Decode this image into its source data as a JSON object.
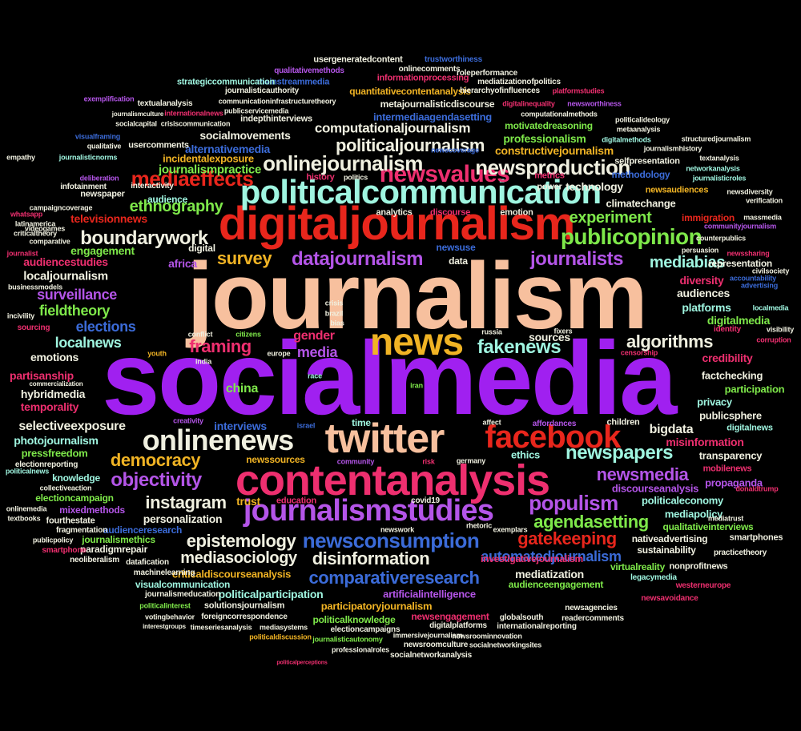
{
  "words": [
    {
      "text": "journalism",
      "color": "#f7c09e"
    },
    {
      "text": "socialmedia",
      "color": "#a020f0"
    },
    {
      "text": "digitaljournalism",
      "color": "#e8261c"
    },
    {
      "text": "politicalcommunication",
      "color": "#9ff5e0"
    },
    {
      "text": "contentanalysis",
      "color": "#ee2f6f"
    },
    {
      "text": "twitter",
      "color": "#f7c09e"
    },
    {
      "text": "news",
      "color": "#f0b324"
    },
    {
      "text": "facebook",
      "color": "#e8261c"
    },
    {
      "text": "onlinenews",
      "color": "#f0f0e0"
    },
    {
      "text": "journalismstudies",
      "color": "#b455e8"
    },
    {
      "text": "newsvalues",
      "color": "#ee2f6f"
    },
    {
      "text": "publicopinion",
      "color": "#7ee84a"
    },
    {
      "text": "mediaeffects",
      "color": "#e8261c"
    },
    {
      "text": "onlinejournalism",
      "color": "#f0f0e0"
    },
    {
      "text": "newsproduction",
      "color": "#f0f0e0"
    },
    {
      "text": "journalists",
      "color": "#b455e8"
    },
    {
      "text": "datajournalism",
      "color": "#b455e8"
    },
    {
      "text": "boundarywork",
      "color": "#f0f0e0"
    },
    {
      "text": "survey",
      "color": "#f0b324"
    },
    {
      "text": "framing",
      "color": "#ee2f6f"
    },
    {
      "text": "fakenews",
      "color": "#9ff5e0"
    },
    {
      "text": "algorithms",
      "color": "#f0f0e0"
    },
    {
      "text": "newsconsumption",
      "color": "#3b6bd8"
    },
    {
      "text": "newspapers",
      "color": "#9ff5e0"
    },
    {
      "text": "populism",
      "color": "#b455e8"
    },
    {
      "text": "objectivity",
      "color": "#b455e8"
    },
    {
      "text": "democracy",
      "color": "#f0b324"
    },
    {
      "text": "instagram",
      "color": "#f0f0e0"
    },
    {
      "text": "epistemology",
      "color": "#f0f0e0"
    },
    {
      "text": "disinformation",
      "color": "#f0f0e0"
    },
    {
      "text": "comparativeresearch",
      "color": "#3b6bd8"
    },
    {
      "text": "agendasetting",
      "color": "#7ee84a"
    },
    {
      "text": "gatekeeping",
      "color": "#e8261c"
    },
    {
      "text": "newsmedia",
      "color": "#b455e8"
    },
    {
      "text": "automatedjournalism",
      "color": "#3b6bd8"
    },
    {
      "text": "mediasociology",
      "color": "#f0f0e0"
    },
    {
      "text": "politicaljournalism",
      "color": "#f0f0e0"
    },
    {
      "text": "computationaljournalism",
      "color": "#f0f0e0"
    },
    {
      "text": "experiment",
      "color": "#7ee84a"
    },
    {
      "text": "ethnography",
      "color": "#7ee84a"
    },
    {
      "text": "mediabias",
      "color": "#9ff5e0"
    },
    {
      "text": "elections",
      "color": "#3b6bd8"
    },
    {
      "text": "surveillance",
      "color": "#b455e8"
    },
    {
      "text": "fieldtheory",
      "color": "#7ee84a"
    },
    {
      "text": "localnews",
      "color": "#9ff5e0"
    },
    {
      "text": "media",
      "color": "#b455e8"
    },
    {
      "text": "gender",
      "color": "#ee2f6f"
    },
    {
      "text": "bigdata",
      "color": "#f0f0e0"
    },
    {
      "text": "selectiveexposure",
      "color": "#f0f0e0"
    },
    {
      "text": "china",
      "color": "#7ee84a"
    },
    {
      "text": "hybridmedia",
      "color": "#f0f0e0"
    },
    {
      "text": "temporality",
      "color": "#ee2f6f"
    },
    {
      "text": "partisanship",
      "color": "#ee2f6f"
    },
    {
      "text": "emotions",
      "color": "#f0f0e0"
    },
    {
      "text": "localjournalism",
      "color": "#f0f0e0"
    },
    {
      "text": "audiencestudies",
      "color": "#ee2f6f"
    },
    {
      "text": "engagement",
      "color": "#7ee84a"
    },
    {
      "text": "televisionnews",
      "color": "#e8261c"
    },
    {
      "text": "journalismpractice",
      "color": "#7ee84a"
    },
    {
      "text": "alternativemedia",
      "color": "#3b6bd8"
    },
    {
      "text": "incidentalexposure",
      "color": "#f0b324"
    },
    {
      "text": "socialmovements",
      "color": "#f0f0e0"
    },
    {
      "text": "constructivejournalism",
      "color": "#f0b324"
    },
    {
      "text": "professionalism",
      "color": "#7ee84a"
    },
    {
      "text": "technology",
      "color": "#f0f0e0"
    },
    {
      "text": "climatechange",
      "color": "#f0f0e0"
    },
    {
      "text": "digitalmedia",
      "color": "#7ee84a"
    },
    {
      "text": "platforms",
      "color": "#9ff5e0"
    },
    {
      "text": "diversity",
      "color": "#ee2f6f"
    },
    {
      "text": "audiences",
      "color": "#f0f0e0"
    },
    {
      "text": "credibility",
      "color": "#ee2f6f"
    },
    {
      "text": "factchecking",
      "color": "#f0f0e0"
    },
    {
      "text": "participation",
      "color": "#7ee84a"
    },
    {
      "text": "privacy",
      "color": "#9ff5e0"
    },
    {
      "text": "publicsphere",
      "color": "#f0f0e0"
    },
    {
      "text": "misinformation",
      "color": "#ee2f6f"
    },
    {
      "text": "transparency",
      "color": "#f0f0e0"
    },
    {
      "text": "propaganda",
      "color": "#b455e8"
    },
    {
      "text": "mediapolicy",
      "color": "#9ff5e0"
    },
    {
      "text": "politicaleconomy",
      "color": "#9ff5e0"
    },
    {
      "text": "discourseanalysis",
      "color": "#b455e8"
    },
    {
      "text": "interviews",
      "color": "#3b6bd8"
    },
    {
      "text": "photojournalism",
      "color": "#9ff5e0"
    },
    {
      "text": "pressfreedom",
      "color": "#7ee84a"
    },
    {
      "text": "newssources",
      "color": "#f0b324"
    },
    {
      "text": "ethics",
      "color": "#9ff5e0"
    },
    {
      "text": "knowledge",
      "color": "#9ff5e0"
    },
    {
      "text": "electioncampaign",
      "color": "#7ee84a"
    },
    {
      "text": "personalization",
      "color": "#f0f0e0"
    },
    {
      "text": "trust",
      "color": "#f0b324"
    },
    {
      "text": "mixedmethods",
      "color": "#b455e8"
    },
    {
      "text": "fourthestate",
      "color": "#f0f0e0"
    },
    {
      "text": "audienceresearch",
      "color": "#3b6bd8"
    },
    {
      "text": "journalismethics",
      "color": "#7ee84a"
    },
    {
      "text": "paradigmrepair",
      "color": "#f0f0e0"
    },
    {
      "text": "criticaldiscourseanalysis",
      "color": "#f0b324"
    },
    {
      "text": "visualcommunication",
      "color": "#9ff5e0"
    },
    {
      "text": "politicalparticipation",
      "color": "#9ff5e0"
    },
    {
      "text": "participatoryjournalism",
      "color": "#f0b324"
    },
    {
      "text": "artificialintelligence",
      "color": "#b455e8"
    },
    {
      "text": "mediatization",
      "color": "#f0f0e0"
    },
    {
      "text": "investigativejournalism",
      "color": "#ee2f6f"
    },
    {
      "text": "audienceengagement",
      "color": "#7ee84a"
    },
    {
      "text": "politicalknowledge",
      "color": "#7ee84a"
    },
    {
      "text": "newsengagement",
      "color": "#ee2f6f"
    },
    {
      "text": "qualitativeinterviews",
      "color": "#7ee84a"
    },
    {
      "text": "nativeadvertising",
      "color": "#f0f0e0"
    },
    {
      "text": "sustainability",
      "color": "#f0f0e0"
    },
    {
      "text": "virtualreality",
      "color": "#7ee84a"
    },
    {
      "text": "intermediaagendasetting",
      "color": "#3b6bd8"
    },
    {
      "text": "metajournalisticdiscourse",
      "color": "#f0f0e0"
    },
    {
      "text": "quantitativecontentanalysis",
      "color": "#f0b324"
    },
    {
      "text": "informationprocessing",
      "color": "#ee2f6f"
    },
    {
      "text": "mainstreammedia",
      "color": "#3b6bd8"
    },
    {
      "text": "usergeneratedcontent",
      "color": "#f0f0e0"
    },
    {
      "text": "strategiccommunication",
      "color": "#9ff5e0"
    },
    {
      "text": "representation",
      "color": "#f0f0e0"
    },
    {
      "text": "immigration",
      "color": "#e8261c"
    },
    {
      "text": "newsaudiences",
      "color": "#f0b324"
    },
    {
      "text": "methodology",
      "color": "#3b6bd8"
    },
    {
      "text": "motivatedreasoning",
      "color": "#7ee84a"
    },
    {
      "text": "indepthinterviews",
      "color": "#f0f0e0"
    },
    {
      "text": "usercomments",
      "color": "#f0f0e0"
    },
    {
      "text": "solutionsjournalism",
      "color": "#f0f0e0"
    },
    {
      "text": "journalismeducation",
      "color": "#f0f0e0"
    },
    {
      "text": "foreigncorrespondence",
      "color": "#f0f0e0"
    },
    {
      "text": "electioncampaigns",
      "color": "#f0f0e0"
    },
    {
      "text": "newsroomculture",
      "color": "#f0f0e0"
    },
    {
      "text": "socialnetworkanalysis",
      "color": "#f0f0e0"
    },
    {
      "text": "machinelearning",
      "color": "#f0f0e0"
    },
    {
      "text": "datafication",
      "color": "#f0f0e0"
    },
    {
      "text": "neoliberalism",
      "color": "#f0f0e0"
    },
    {
      "text": "smartphone",
      "color": "#ee2f6f"
    },
    {
      "text": "fragmentation",
      "color": "#f0f0e0"
    },
    {
      "text": "education",
      "color": "#ee2f6f"
    },
    {
      "text": "covid19",
      "color": "#f0f0e0"
    },
    {
      "text": "sources",
      "color": "#f0f0e0"
    },
    {
      "text": "africa",
      "color": "#b455e8"
    },
    {
      "text": "digital",
      "color": "#f0f0e0"
    },
    {
      "text": "audience",
      "color": "#9ff5e0"
    },
    {
      "text": "newspaper",
      "color": "#f0f0e0"
    },
    {
      "text": "interactivity",
      "color": "#f0f0e0"
    },
    {
      "text": "infotainment",
      "color": "#f0f0e0"
    },
    {
      "text": "children",
      "color": "#f0f0e0"
    },
    {
      "text": "affordances",
      "color": "#b455e8"
    },
    {
      "text": "time",
      "color": "#9ff5e0"
    },
    {
      "text": "data",
      "color": "#f0f0e0"
    },
    {
      "text": "newsuse",
      "color": "#3b6bd8"
    },
    {
      "text": "analytics",
      "color": "#f0f0e0"
    },
    {
      "text": "discourse",
      "color": "#ee2f6f"
    },
    {
      "text": "emotion",
      "color": "#f0f0e0"
    },
    {
      "text": "power",
      "color": "#f0f0e0"
    },
    {
      "text": "metrics",
      "color": "#ee2f6f"
    },
    {
      "text": "history",
      "color": "#ee2f6f"
    },
    {
      "text": "politics",
      "color": "#f0f0e0"
    },
    {
      "text": "selfpresentation",
      "color": "#f0f0e0"
    },
    {
      "text": "mobilenews",
      "color": "#ee2f6f"
    },
    {
      "text": "digitalnews",
      "color": "#9ff5e0"
    },
    {
      "text": "smartphones",
      "color": "#f0f0e0"
    },
    {
      "text": "nonprofitnews",
      "color": "#f0f0e0"
    },
    {
      "text": "practicetheory",
      "color": "#f0f0e0"
    },
    {
      "text": "legacymedia",
      "color": "#9ff5e0"
    },
    {
      "text": "westerneurope",
      "color": "#ee2f6f"
    },
    {
      "text": "newsavoidance",
      "color": "#ee2f6f"
    },
    {
      "text": "newsagencies",
      "color": "#f0f0e0"
    },
    {
      "text": "readercomments",
      "color": "#f0f0e0"
    },
    {
      "text": "globalsouth",
      "color": "#f0f0e0"
    },
    {
      "text": "internationalreporting",
      "color": "#f0f0e0"
    },
    {
      "text": "newsroominnovation",
      "color": "#f0f0e0"
    },
    {
      "text": "socialnetworkingsites",
      "color": "#f0f0e0"
    },
    {
      "text": "digitalplatforms",
      "color": "#f0f0e0"
    },
    {
      "text": "immersivejournalism",
      "color": "#f0f0e0"
    },
    {
      "text": "professionalroles",
      "color": "#f0f0e0"
    },
    {
      "text": "journalisticautonomy",
      "color": "#7ee84a"
    },
    {
      "text": "politicaldiscussion",
      "color": "#f0b324"
    },
    {
      "text": "timeseriesanalysis",
      "color": "#f0f0e0"
    },
    {
      "text": "mediasystems",
      "color": "#f0f0e0"
    },
    {
      "text": "politicalinterest",
      "color": "#7ee84a"
    },
    {
      "text": "votingbehavior",
      "color": "#f0f0e0"
    },
    {
      "text": "politicalperceptions",
      "color": "#ee2f6f"
    },
    {
      "text": "onlinecomments",
      "color": "#f0f0e0"
    },
    {
      "text": "roleperformance",
      "color": "#f0f0e0"
    },
    {
      "text": "hierarchyofinfluences",
      "color": "#f0f0e0"
    },
    {
      "text": "mediatizationofpolitics",
      "color": "#f0f0e0"
    },
    {
      "text": "trustworthiness",
      "color": "#3b6bd8"
    },
    {
      "text": "qualitativemethods",
      "color": "#b455e8"
    },
    {
      "text": "journalisticauthority",
      "color": "#f0f0e0"
    },
    {
      "text": "publicservicemedia",
      "color": "#f0f0e0"
    },
    {
      "text": "communicationinfrastructuretheory",
      "color": "#f0f0e0"
    },
    {
      "text": "textualanalysis",
      "color": "#f0f0e0"
    },
    {
      "text": "crisiscommunication",
      "color": "#f0f0e0"
    },
    {
      "text": "socialcapital",
      "color": "#f0f0e0"
    },
    {
      "text": "internationalnews",
      "color": "#ee2f6f"
    },
    {
      "text": "exemplification",
      "color": "#b455e8"
    },
    {
      "text": "digitalinequality",
      "color": "#ee2f6f"
    },
    {
      "text": "newsworthiness",
      "color": "#b455e8"
    },
    {
      "text": "computationalmethods",
      "color": "#f0f0e0"
    },
    {
      "text": "politicalideology",
      "color": "#f0f0e0"
    },
    {
      "text": "metaanalysis",
      "color": "#f0f0e0"
    },
    {
      "text": "structuredjournalism",
      "color": "#f0f0e0"
    },
    {
      "text": "textanalysis",
      "color": "#f0f0e0"
    },
    {
      "text": "networkanalysis",
      "color": "#9ff5e0"
    },
    {
      "text": "journalisticroles",
      "color": "#9ff5e0"
    },
    {
      "text": "newsdiversity",
      "color": "#f0f0e0"
    },
    {
      "text": "verification",
      "color": "#f0f0e0"
    },
    {
      "text": "massmedia",
      "color": "#f0f0e0"
    },
    {
      "text": "communityjournalism",
      "color": "#b455e8"
    },
    {
      "text": "accountability",
      "color": "#3b6bd8"
    },
    {
      "text": "civilsociety",
      "color": "#f0f0e0"
    },
    {
      "text": "newssharing",
      "color": "#ee2f6f"
    },
    {
      "text": "advertising",
      "color": "#3b6bd8"
    },
    {
      "text": "localmedia",
      "color": "#9ff5e0"
    },
    {
      "text": "visibility",
      "color": "#f0f0e0"
    },
    {
      "text": "corruption",
      "color": "#ee2f6f"
    },
    {
      "text": "identity",
      "color": "#ee2f6f"
    },
    {
      "text": "persuasion",
      "color": "#f0f0e0"
    },
    {
      "text": "censorship",
      "color": "#ee2f6f"
    },
    {
      "text": "fixers",
      "color": "#f0f0e0"
    },
    {
      "text": "conflict",
      "color": "#f0f0e0"
    },
    {
      "text": "citizens",
      "color": "#7ee84a"
    },
    {
      "text": "europe",
      "color": "#f0f0e0"
    },
    {
      "text": "youth",
      "color": "#f0b324"
    },
    {
      "text": "india",
      "color": "#f0f0e0"
    },
    {
      "text": "crisis",
      "color": "#f0f0e0"
    },
    {
      "text": "brazil",
      "color": "#f0f0e0"
    },
    {
      "text": "bias",
      "color": "#f0f0e0"
    },
    {
      "text": "russia",
      "color": "#f0f0e0"
    },
    {
      "text": "iran",
      "color": "#7ee84a"
    },
    {
      "text": "race",
      "color": "#9ff5e0"
    },
    {
      "text": "germany",
      "color": "#f0f0e0"
    },
    {
      "text": "community",
      "color": "#b455e8"
    },
    {
      "text": "risk",
      "color": "#ee2f6f"
    },
    {
      "text": "israel",
      "color": "#3b6bd8"
    },
    {
      "text": "affect",
      "color": "#f0f0e0"
    },
    {
      "text": "creativity",
      "color": "#b455e8"
    },
    {
      "text": "rhetoric",
      "color": "#f0f0e0"
    },
    {
      "text": "exemplars",
      "color": "#f0f0e0"
    },
    {
      "text": "newswork",
      "color": "#f0f0e0"
    },
    {
      "text": "collectiveaction",
      "color": "#f0f0e0"
    },
    {
      "text": "electionreporting",
      "color": "#f0f0e0"
    },
    {
      "text": "videogames",
      "color": "#f0f0e0"
    },
    {
      "text": "comparative",
      "color": "#f0f0e0"
    },
    {
      "text": "latinamerica",
      "color": "#f0f0e0"
    },
    {
      "text": "criticaltheory",
      "color": "#f0f0e0"
    },
    {
      "text": "campaigncoverage",
      "color": "#f0f0e0"
    },
    {
      "text": "whatsapp",
      "color": "#ee2f6f"
    },
    {
      "text": "journalist",
      "color": "#ee2f6f"
    },
    {
      "text": "businessmodels",
      "color": "#f0f0e0"
    },
    {
      "text": "incivility",
      "color": "#f0f0e0"
    },
    {
      "text": "sourcing",
      "color": "#ee2f6f"
    },
    {
      "text": "commercialization",
      "color": "#f0f0e0"
    },
    {
      "text": "empathy",
      "color": "#f0f0e0"
    },
    {
      "text": "politicalnews",
      "color": "#9ff5e0"
    },
    {
      "text": "onlinemedia",
      "color": "#f0f0e0"
    },
    {
      "text": "textbooks",
      "color": "#f0f0e0"
    },
    {
      "text": "publicpolicy",
      "color": "#f0f0e0"
    },
    {
      "text": "qualitative",
      "color": "#f0f0e0"
    },
    {
      "text": "visualframing",
      "color": "#3b6bd8"
    },
    {
      "text": "journalisticnorms",
      "color": "#9ff5e0"
    },
    {
      "text": "deliberation",
      "color": "#b455e8"
    },
    {
      "text": "interestgroups",
      "color": "#f0f0e0"
    },
    {
      "text": "digitalmethods",
      "color": "#9ff5e0"
    },
    {
      "text": "journalismhistory",
      "color": "#f0f0e0"
    },
    {
      "text": "counterpublics",
      "color": "#f0f0e0"
    },
    {
      "text": "donaldtrump",
      "color": "#ee2f6f"
    },
    {
      "text": "mediatrust",
      "color": "#f0f0e0"
    },
    {
      "text": "platformstudies",
      "color": "#ee2f6f"
    },
    {
      "text": "journalismculture",
      "color": "#f0f0e0"
    },
    {
      "text": "newscoverage",
      "color": "#3b6bd8"
    }
  ]
}
